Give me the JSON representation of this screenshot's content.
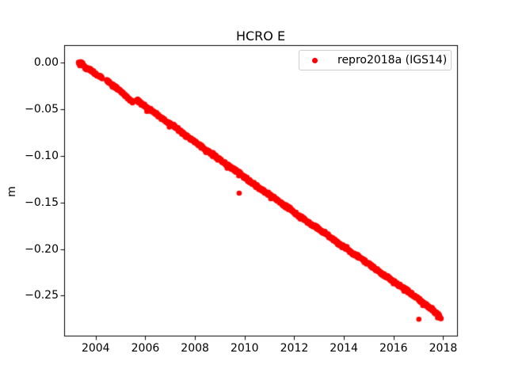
{
  "figure": {
    "background": "#ffffff",
    "frame_color": "#000000"
  },
  "chart_data": {
    "type": "scatter",
    "title": "HCRO E",
    "xlabel": "",
    "ylabel": "m",
    "grid": false,
    "xlim": [
      2002.73,
      2018.56
    ],
    "ylim": [
      -0.2931,
      0.019
    ],
    "xticks": [
      {
        "v": 2004,
        "label": "2004"
      },
      {
        "v": 2006,
        "label": "2006"
      },
      {
        "v": 2008,
        "label": "2008"
      },
      {
        "v": 2010,
        "label": "2010"
      },
      {
        "v": 2012,
        "label": "2012"
      },
      {
        "v": 2014,
        "label": "2014"
      },
      {
        "v": 2016,
        "label": "2016"
      },
      {
        "v": 2018,
        "label": "2018"
      }
    ],
    "yticks": [
      {
        "v": 0.0,
        "label": "0.00"
      },
      {
        "v": -0.05,
        "label": "−0.05"
      },
      {
        "v": -0.1,
        "label": "−0.10"
      },
      {
        "v": -0.15,
        "label": "−0.15"
      },
      {
        "v": -0.2,
        "label": "−0.20"
      },
      {
        "v": -0.25,
        "label": "−0.25"
      }
    ],
    "legend": {
      "position": "upper right",
      "entries": [
        {
          "label": "repro2018a (IGS14)",
          "color": "#ff0000",
          "marker": "circle"
        }
      ]
    },
    "series": [
      {
        "name": "repro2018a (IGS14)",
        "color": "#ff0000",
        "marker_size_px": 6.6,
        "trend_m_per_year": -0.019,
        "density_per_year": 110,
        "jitter_m": 0.0022,
        "gaps": [
          [
            2004.27,
            2004.44
          ],
          [
            2005.49,
            2005.63
          ]
        ],
        "outliers": [
          [
            2009.78,
            -0.14
          ],
          [
            2017.02,
            -0.2755
          ]
        ],
        "anchors": [
          [
            2003.3,
            0.001
          ],
          [
            2003.45,
            -0.001
          ],
          [
            2003.6,
            -0.006
          ],
          [
            2003.8,
            -0.008
          ],
          [
            2004.0,
            -0.012
          ],
          [
            2004.25,
            -0.016
          ],
          [
            2004.45,
            -0.019
          ],
          [
            2004.7,
            -0.024
          ],
          [
            2004.9,
            -0.028
          ],
          [
            2005.1,
            -0.033
          ],
          [
            2005.3,
            -0.038
          ],
          [
            2005.5,
            -0.042
          ],
          [
            2005.65,
            -0.04
          ],
          [
            2005.9,
            -0.045
          ],
          [
            2006.1,
            -0.049
          ],
          [
            2006.35,
            -0.053
          ],
          [
            2006.6,
            -0.058
          ],
          [
            2006.85,
            -0.063
          ],
          [
            2007.1,
            -0.067
          ],
          [
            2007.35,
            -0.072
          ],
          [
            2007.6,
            -0.078
          ],
          [
            2007.85,
            -0.082
          ],
          [
            2008.1,
            -0.087
          ],
          [
            2008.35,
            -0.092
          ],
          [
            2008.6,
            -0.096
          ],
          [
            2008.85,
            -0.101
          ],
          [
            2009.1,
            -0.106
          ],
          [
            2009.35,
            -0.111
          ],
          [
            2009.6,
            -0.115
          ],
          [
            2009.85,
            -0.12
          ],
          [
            2010.1,
            -0.125
          ],
          [
            2010.35,
            -0.13
          ],
          [
            2010.6,
            -0.135
          ],
          [
            2010.85,
            -0.139
          ],
          [
            2011.1,
            -0.144
          ],
          [
            2011.35,
            -0.148
          ],
          [
            2011.6,
            -0.153
          ],
          [
            2011.85,
            -0.157
          ],
          [
            2012.1,
            -0.163
          ],
          [
            2012.35,
            -0.167
          ],
          [
            2012.6,
            -0.172
          ],
          [
            2012.85,
            -0.176
          ],
          [
            2013.1,
            -0.181
          ],
          [
            2013.35,
            -0.185
          ],
          [
            2013.6,
            -0.19
          ],
          [
            2013.85,
            -0.196
          ],
          [
            2014.1,
            -0.199
          ],
          [
            2014.35,
            -0.205
          ],
          [
            2014.6,
            -0.208
          ],
          [
            2014.85,
            -0.213
          ],
          [
            2015.1,
            -0.218
          ],
          [
            2015.35,
            -0.223
          ],
          [
            2015.6,
            -0.228
          ],
          [
            2015.85,
            -0.232
          ],
          [
            2016.1,
            -0.237
          ],
          [
            2016.35,
            -0.241
          ],
          [
            2016.6,
            -0.246
          ],
          [
            2016.85,
            -0.25
          ],
          [
            2017.1,
            -0.256
          ],
          [
            2017.35,
            -0.261
          ],
          [
            2017.6,
            -0.266
          ],
          [
            2017.8,
            -0.271
          ],
          [
            2017.92,
            -0.275
          ]
        ]
      }
    ]
  }
}
